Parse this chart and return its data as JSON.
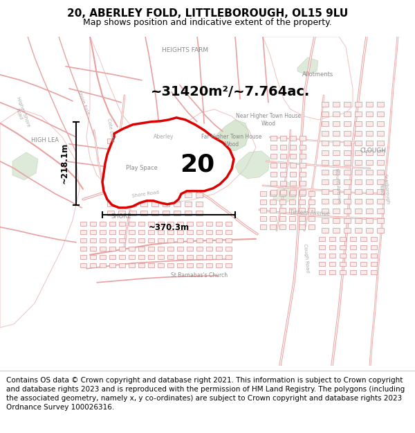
{
  "title": "20, ABERLEY FOLD, LITTLEBOROUGH, OL15 9LU",
  "subtitle": "Map shows position and indicative extent of the property.",
  "area_text": "~31420m²/~7.764ac.",
  "height_label": "~218.1m",
  "width_label": "~370.3m",
  "property_number": "20",
  "footer": "Contains OS data © Crown copyright and database right 2021. This information is subject to Crown copyright and database rights 2023 and is reproduced with the permission of HM Land Registry. The polygons (including the associated geometry, namely x, y co-ordinates) are subject to Crown copyright and database rights 2023 Ordnance Survey 100026316.",
  "map_bg": "#ffffff",
  "title_fontsize": 11,
  "subtitle_fontsize": 9,
  "footer_fontsize": 7.5,
  "red_color": "#dd0000",
  "road_color": "#f0b8b8",
  "road_color2": "#e8a0a0",
  "building_color": "#f5e8e8",
  "building_edge": "#d4a0a0",
  "gray_text": "#888888",
  "light_gray_text": "#aaaaaa",
  "green_color": "#c8dcc0"
}
